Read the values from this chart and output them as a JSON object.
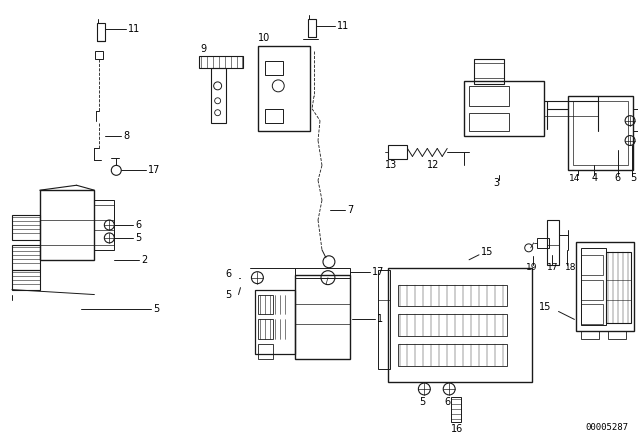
{
  "background_color": "#ffffff",
  "diagram_id": "00005287",
  "fig_width": 6.4,
  "fig_height": 4.48,
  "dpi": 100,
  "line_color": "#1a1a1a",
  "text_color": "#000000",
  "font_size": 7.0,
  "diagram_id_fontsize": 6.5
}
